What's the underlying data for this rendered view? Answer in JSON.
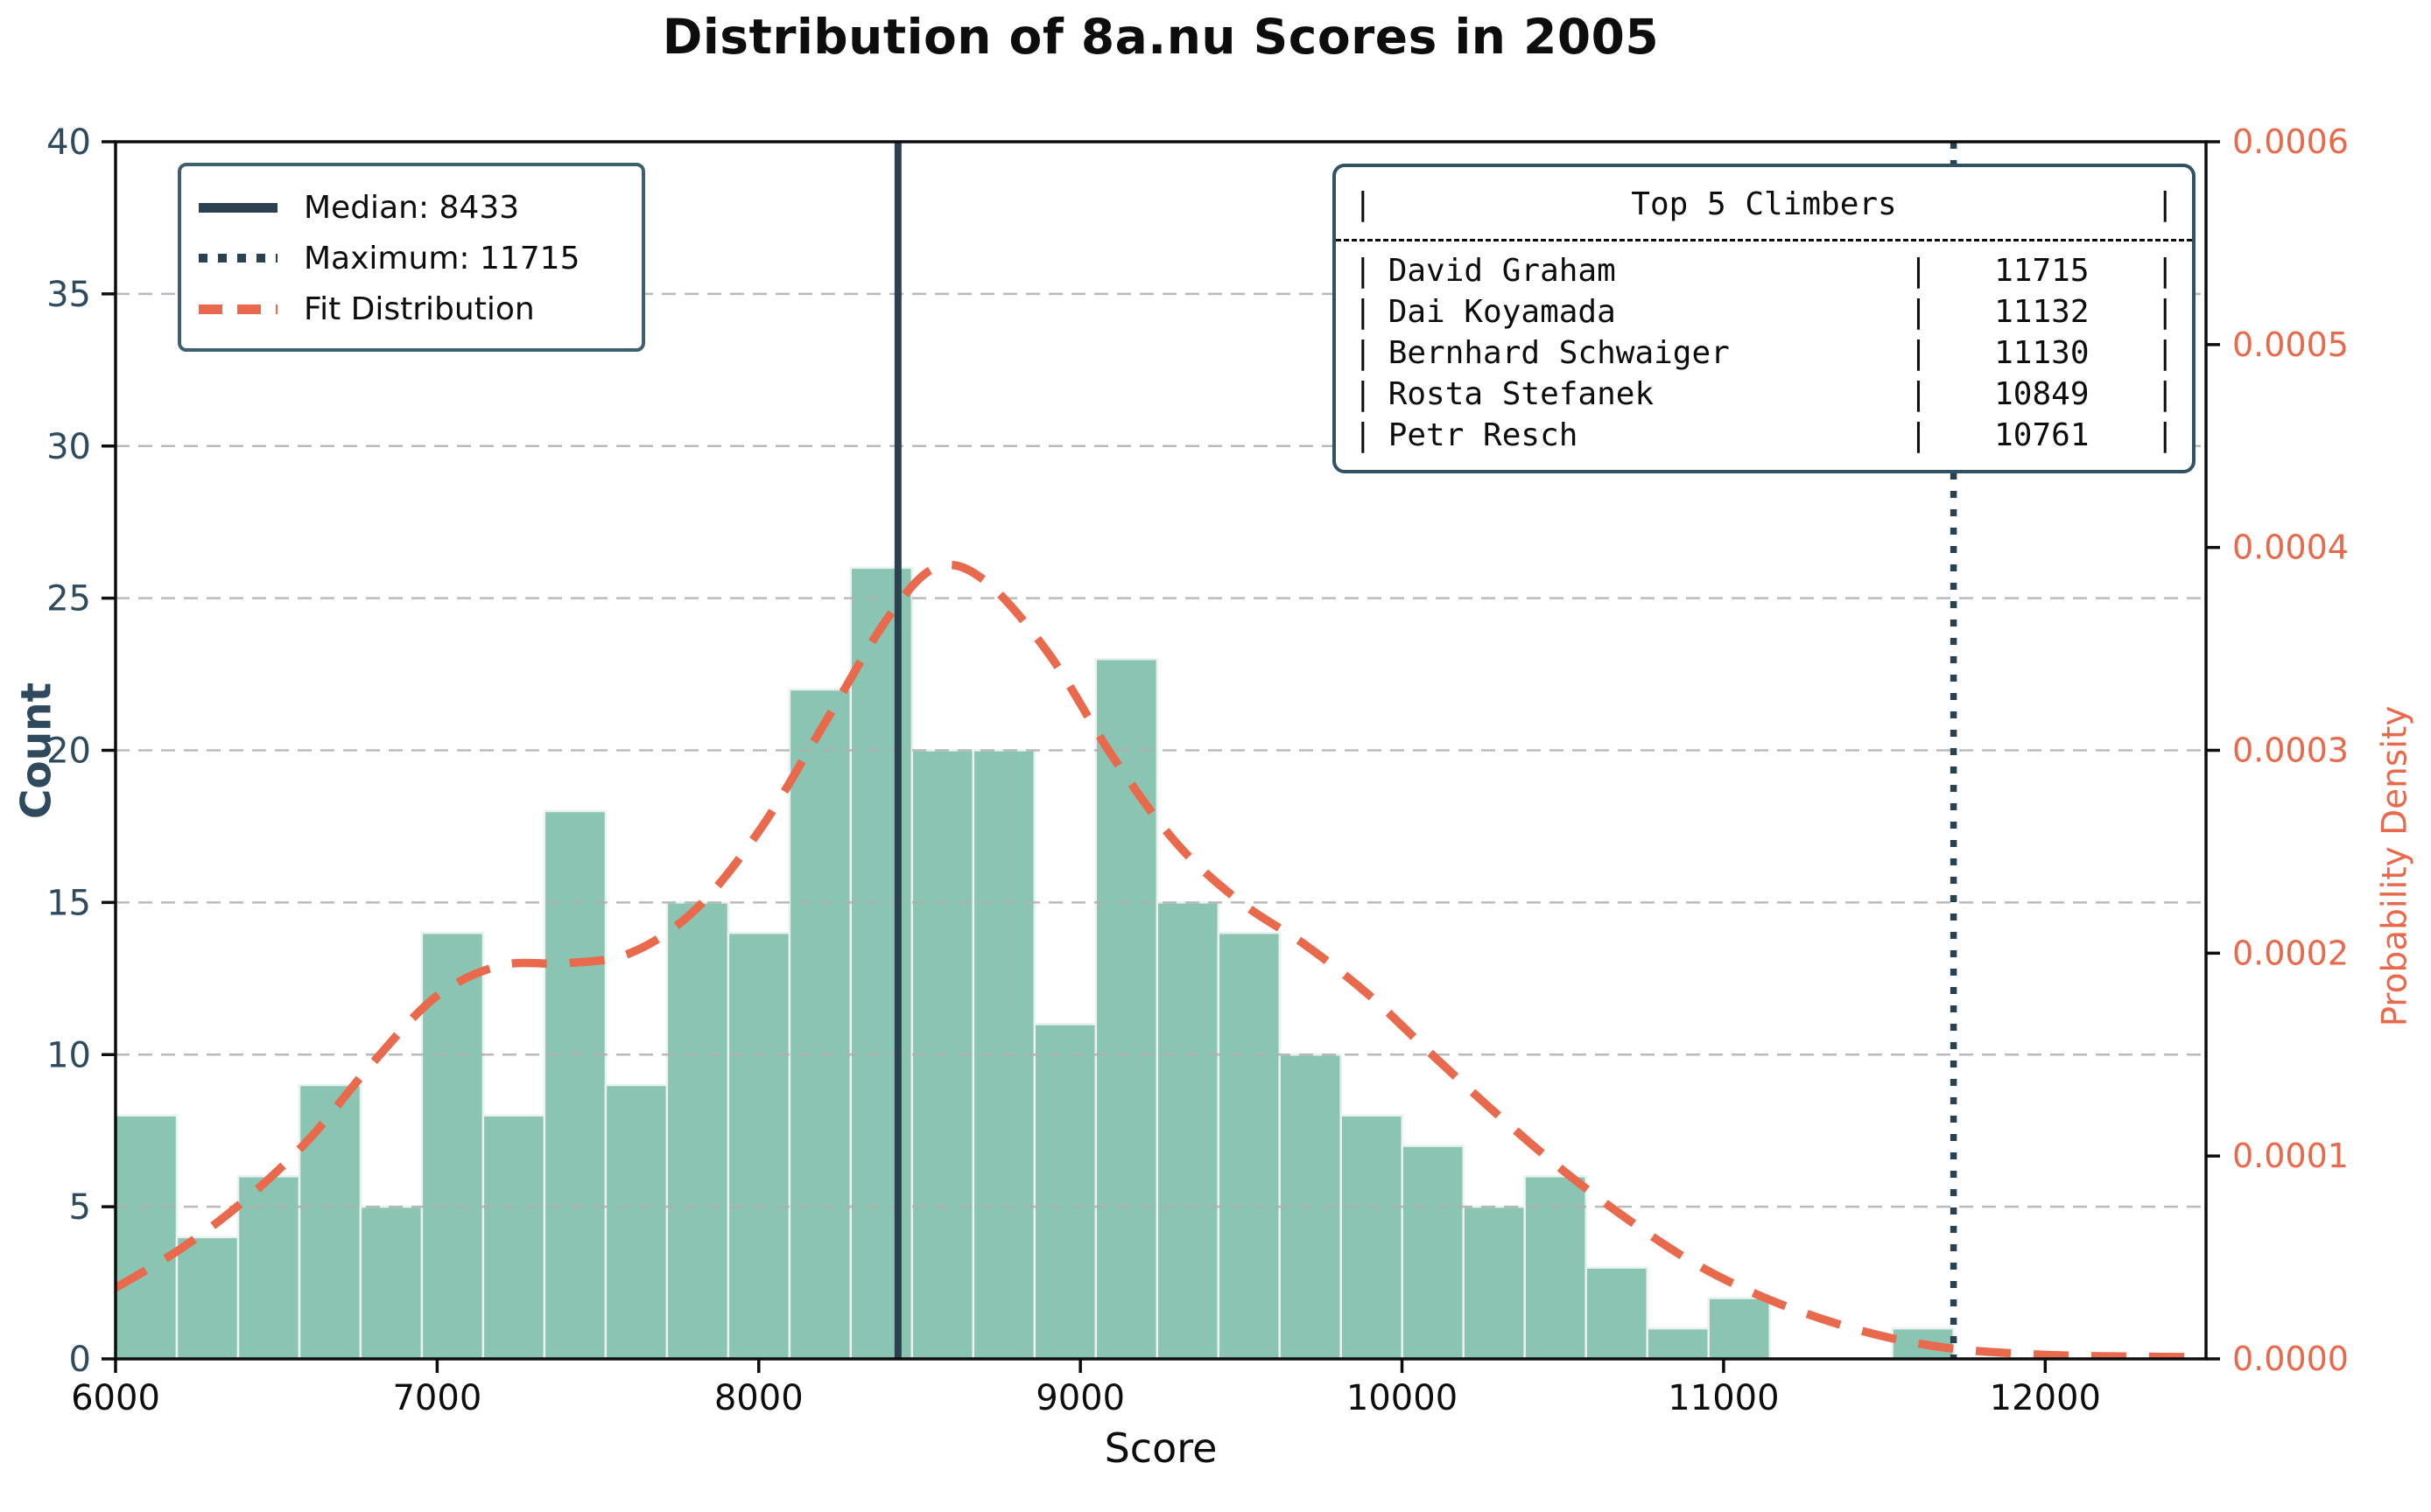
{
  "title": "Distribution of 8a.nu Scores in 2005",
  "axes": {
    "x_label": "Score",
    "y_left_label": "Count",
    "y_right_label": "Probability Density",
    "x_ticks": [
      "6000",
      "7000",
      "8000",
      "9000",
      "10000",
      "11000",
      "12000"
    ],
    "y_left_ticks": [
      "0",
      "5",
      "10",
      "15",
      "20",
      "25",
      "30",
      "35",
      "40"
    ],
    "y_right_ticks": [
      "0.0000",
      "0.0001",
      "0.0002",
      "0.0003",
      "0.0004",
      "0.0005",
      "0.0006"
    ]
  },
  "legend": {
    "items": [
      {
        "label": "Median: 8433",
        "style": "solid"
      },
      {
        "label": "Maximum: 11715",
        "style": "dotted"
      },
      {
        "label": "Fit Distribution",
        "style": "dashed"
      }
    ]
  },
  "top5_table": {
    "pipe": "|",
    "title": "Top 5 Climbers",
    "rows": [
      {
        "name": "David Graham",
        "score": "11715"
      },
      {
        "name": "Dai Koyamada",
        "score": "11132"
      },
      {
        "name": "Bernhard Schwaiger",
        "score": "11130"
      },
      {
        "name": "Rosta Stefanek",
        "score": "10849"
      },
      {
        "name": "Petr Resch",
        "score": "10761"
      }
    ]
  },
  "chart_data": {
    "type": "bar",
    "subtype": "histogram-with-kde",
    "title": "Distribution of 8a.nu Scores in 2005",
    "xlabel": "Score",
    "ylabel": "Count",
    "ylabel_right": "Probability Density",
    "xlim": [
      6000,
      12500
    ],
    "ylim": [
      0,
      40
    ],
    "ylim_right": [
      0,
      0.0006
    ],
    "grid": "horizontal-dashed",
    "legend_position": "upper left",
    "histogram": {
      "bin_start": 6000,
      "bin_end": 11715,
      "bin_width": 190.5,
      "counts": [
        8,
        4,
        6,
        9,
        5,
        14,
        8,
        18,
        9,
        15,
        14,
        22,
        26,
        20,
        20,
        11,
        23,
        15,
        14,
        10,
        8,
        7,
        5,
        6,
        3,
        1,
        2,
        0,
        0,
        1
      ]
    },
    "median": 8433,
    "maximum": 11715,
    "fit_curve": {
      "x": [
        6000,
        6200,
        6400,
        6600,
        6800,
        7000,
        7200,
        7400,
        7600,
        7800,
        8000,
        8200,
        8400,
        8550,
        8700,
        8900,
        9100,
        9300,
        9500,
        9700,
        9900,
        10100,
        10300,
        10500,
        10700,
        10900,
        11100,
        11300,
        11500,
        11700,
        11900,
        12100,
        12300,
        12500
      ],
      "density": [
        3.5e-05,
        5.4e-05,
        7.8e-05,
        0.000108,
        0.000146,
        0.000179,
        0.000194,
        0.000195,
        0.0002,
        0.000221,
        0.00026,
        0.000312,
        0.000365,
        0.00039,
        0.000384,
        0.000348,
        0.000297,
        0.000254,
        0.000225,
        0.000204,
        0.000179,
        0.000149,
        0.00012,
        9.3e-05,
        6.9e-05,
        4.8e-05,
        3.2e-05,
        2e-05,
        1.1e-05,
        5.3e-06,
        2.7e-06,
        1.5e-06,
        1.1e-06,
        8e-07
      ]
    },
    "colors": {
      "bar_fill": "#8AC4B2",
      "bar_edge": "#E9F2EF",
      "fit_line": "#E8694B",
      "median_line": "#2C4150",
      "maximum_line": "#2C4150",
      "left_axis_text": "#2E4A5C",
      "right_axis_text": "#E8694B",
      "grid": "#AFAFAF",
      "spine": "#0d0d0d"
    }
  }
}
